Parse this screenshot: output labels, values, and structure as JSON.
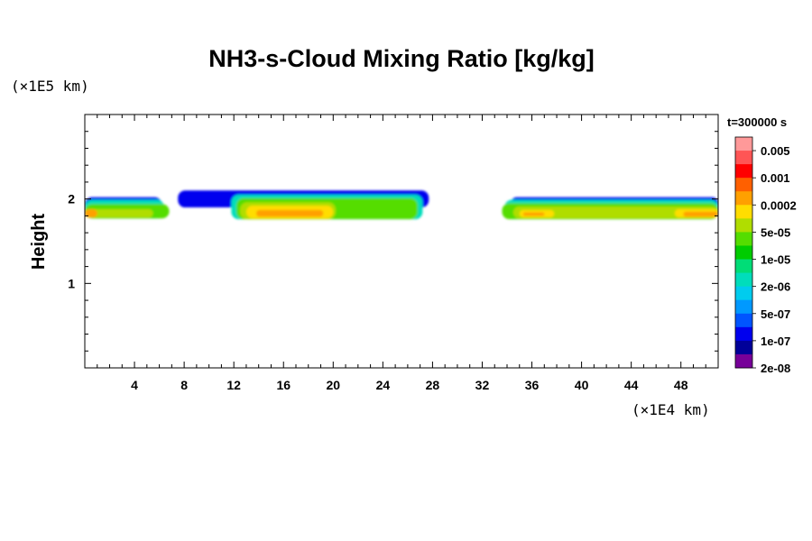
{
  "chart_data": {
    "type": "heatmap",
    "title": "NH3-s-Cloud Mixing Ratio [kg/kg]",
    "xlabel": "",
    "ylabel": "Height",
    "x_unit_label": "(×1E4 km)",
    "y_unit_label": "(×1E5 km)",
    "time_label": "t=300000 s",
    "xlim": [
      0,
      51
    ],
    "ylim": [
      0,
      3
    ],
    "x_ticks": [
      4,
      8,
      12,
      16,
      20,
      24,
      28,
      32,
      36,
      40,
      44,
      48
    ],
    "x_tick_labels": [
      "4",
      "8",
      "12",
      "16",
      "20",
      "24",
      "28",
      "32",
      "36",
      "40",
      "44",
      "48"
    ],
    "x_minor_step": 1,
    "y_ticks": [
      1,
      2
    ],
    "y_tick_labels": [
      "1",
      "2"
    ],
    "y_minor_step": 0.2,
    "colorbar": {
      "colors": [
        "#ff9999",
        "#ff5555",
        "#ff0000",
        "#ff6000",
        "#ffa000",
        "#ffdd00",
        "#b0dd00",
        "#55dd00",
        "#00cc00",
        "#00dd77",
        "#00ddbb",
        "#00ccee",
        "#0099ff",
        "#0055ff",
        "#0000ee",
        "#000099",
        "#770099"
      ],
      "labels": [
        "0.005",
        "0.001",
        "0.0002",
        "5e-05",
        "1e-05",
        "2e-06",
        "5e-07",
        "1e-07",
        "2e-08"
      ]
    },
    "cloud_regions": [
      {
        "x_range": [
          0,
          7
        ],
        "layers": [
          {
            "level": "edge",
            "color": "#0000ee",
            "x": [
              0,
              6.2
            ],
            "top": 2.02,
            "bottom": 1.78
          },
          {
            "level": "5e-07",
            "color": "#00ddbb",
            "x": [
              0,
              6.4
            ],
            "top": 1.99,
            "bottom": 1.77
          },
          {
            "level": "1e-05",
            "color": "#55dd00",
            "x": [
              0,
              6.8
            ],
            "top": 1.94,
            "bottom": 1.77
          },
          {
            "level": "5e-05",
            "color": "#b0dd00",
            "x": [
              0,
              5.5
            ],
            "top": 1.88,
            "bottom": 1.78
          },
          {
            "level": "0.0002",
            "color": "#ffa000",
            "x": [
              0,
              1.0
            ],
            "top": 1.88,
            "bottom": 1.78
          }
        ]
      },
      {
        "x_range": [
          7.5,
          27.7
        ],
        "layers": [
          {
            "level": "edge",
            "color": "#0000ee",
            "x": [
              7.5,
              27.7
            ],
            "top": 2.1,
            "bottom": 1.9
          },
          {
            "level": "5e-07",
            "color": "#00ddbb",
            "x": [
              11.8,
              27.2
            ],
            "top": 2.05,
            "bottom": 1.76
          },
          {
            "level": "1e-05",
            "color": "#55dd00",
            "x": [
              12.2,
              26.8
            ],
            "top": 2.01,
            "bottom": 1.76
          },
          {
            "level": "5e-05",
            "color": "#b0dd00",
            "x": [
              12.5,
              20.2
            ],
            "top": 1.96,
            "bottom": 1.76
          },
          {
            "level": "2e-05",
            "color": "#ffdd00",
            "x": [
              13.0,
              20.0
            ],
            "top": 1.92,
            "bottom": 1.77
          },
          {
            "level": "0.0002",
            "color": "#ffa000",
            "x": [
              13.8,
              19.2
            ],
            "top": 1.87,
            "bottom": 1.79
          }
        ]
      },
      {
        "x_range": [
          33.5,
          51
        ],
        "layers": [
          {
            "level": "edge",
            "color": "#0000ee",
            "x": [
              34.3,
              51
            ],
            "top": 2.02,
            "bottom": 1.88
          },
          {
            "level": "5e-07",
            "color": "#00ddbb",
            "x": [
              33.8,
              51
            ],
            "top": 1.99,
            "bottom": 1.76
          },
          {
            "level": "1e-05",
            "color": "#55dd00",
            "x": [
              33.6,
              51
            ],
            "top": 1.95,
            "bottom": 1.76
          },
          {
            "level": "5e-05",
            "color": "#b0dd00",
            "x": [
              34.5,
              51
            ],
            "top": 1.91,
            "bottom": 1.77
          },
          {
            "level": "2e-05",
            "color": "#ffdd00",
            "x": [
              35.0,
              37.8
            ],
            "top": 1.87,
            "bottom": 1.78
          },
          {
            "level": "2e-05",
            "color": "#ffdd00",
            "x": [
              47.5,
              51
            ],
            "top": 1.88,
            "bottom": 1.78
          },
          {
            "level": "0.0002",
            "color": "#ffa000",
            "x": [
              35.3,
              37.0
            ],
            "top": 1.84,
            "bottom": 1.8
          },
          {
            "level": "0.0002",
            "color": "#ffa000",
            "x": [
              48.2,
              51
            ],
            "top": 1.85,
            "bottom": 1.79
          }
        ]
      }
    ]
  }
}
